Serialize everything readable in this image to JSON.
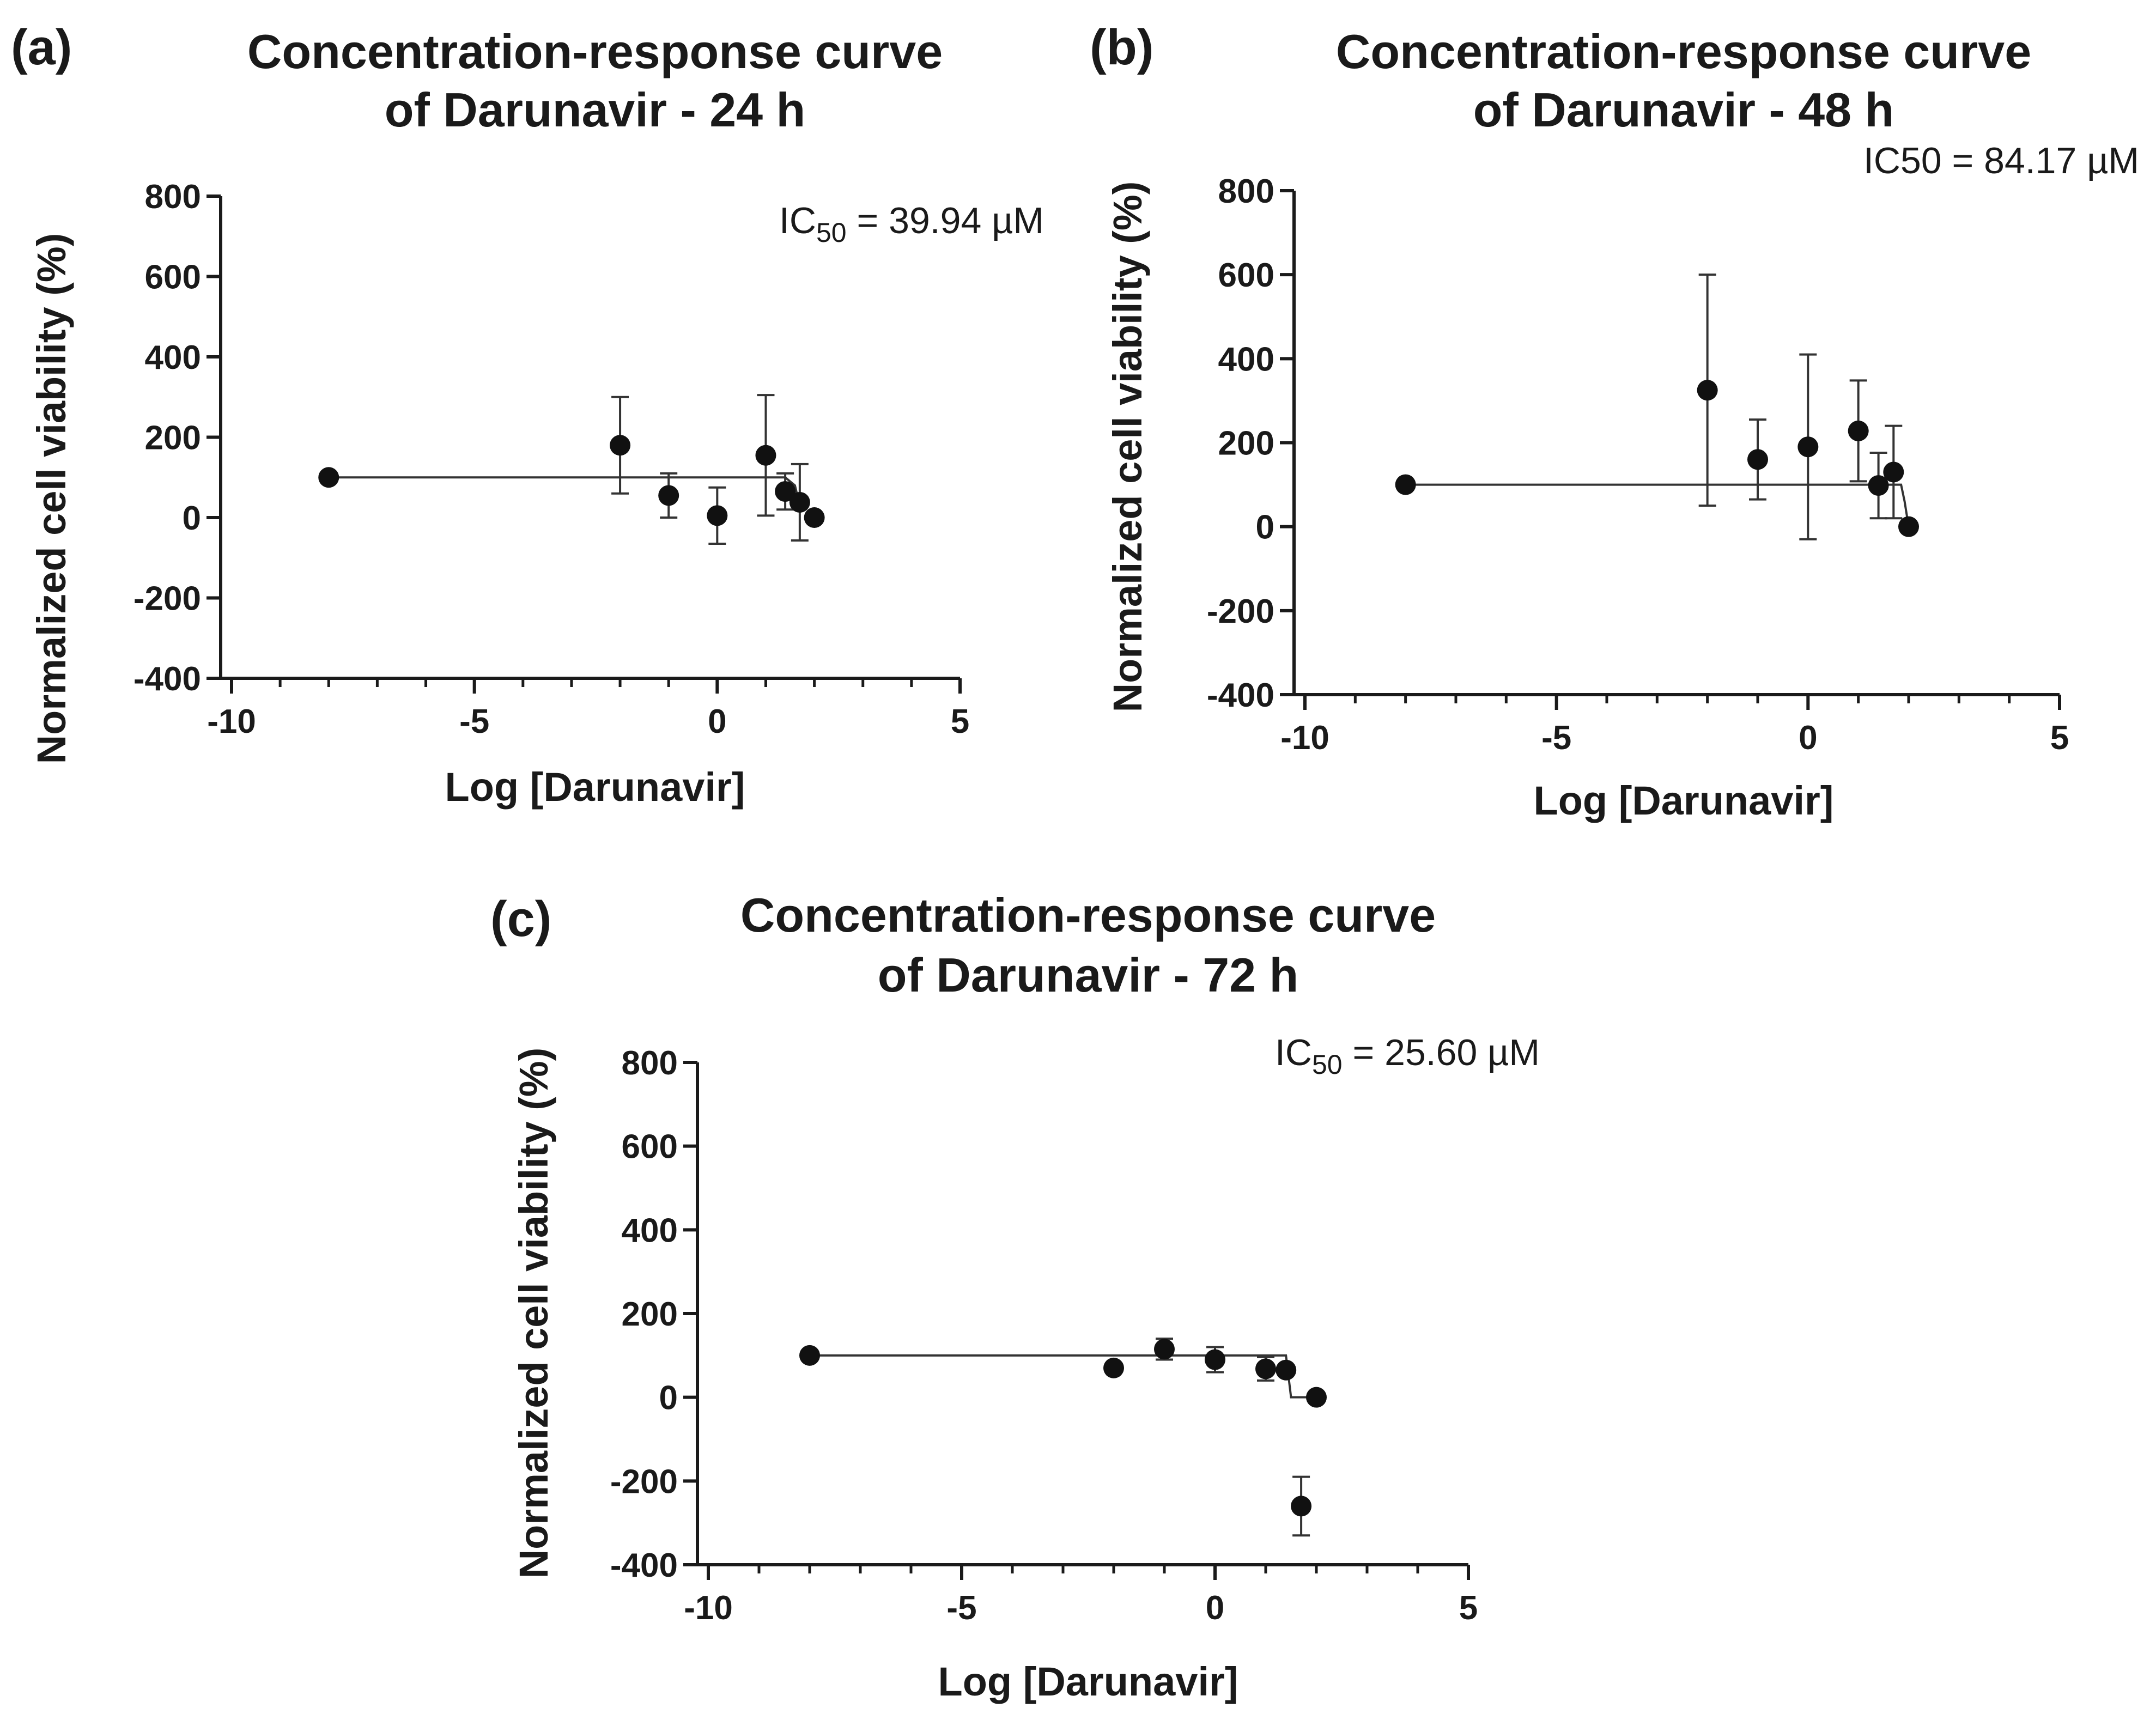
{
  "figure": {
    "panels": [
      {
        "label": "(a)",
        "title_line1": "Concentration-response curve",
        "title_line2": "of Darunavir - 24 h"
      },
      {
        "label": "(b)",
        "title_line1": "Concentration-response curve",
        "title_line2": "of Darunavir - 48 h"
      },
      {
        "label": "(c)",
        "title_line1": "Concentration-response curve",
        "title_line2": "of Darunavir - 72 h"
      }
    ]
  },
  "chart_data": [
    {
      "type": "scatter",
      "panel": "(a)",
      "title": "Concentration-response curve of Darunavir - 24 h",
      "xlabel": "Log [Darunavir]",
      "ylabel": "Normalized cell viability (%)",
      "xlim": [
        -10,
        5
      ],
      "ylim": [
        -400,
        800
      ],
      "xticks": [
        -10,
        -5,
        0,
        5
      ],
      "yticks": [
        -400,
        -200,
        0,
        200,
        400,
        600,
        800
      ],
      "annotation": {
        "prefix": "IC",
        "subscript": "50",
        "suffix": " = 39.94 µM"
      },
      "series": [
        {
          "name": "Darunavir 24 h",
          "x": [
            -8,
            -2,
            -1,
            0,
            1,
            1.4,
            1.7,
            2
          ],
          "y": [
            100,
            180,
            55,
            5,
            155,
            65,
            38,
            0
          ],
          "err": [
            0,
            120,
            55,
            70,
            150,
            45,
            95,
            0
          ]
        }
      ],
      "fit": {
        "x": [
          -8,
          1.4,
          1.6,
          1.7
        ],
        "y": [
          100,
          100,
          80,
          30
        ]
      }
    },
    {
      "type": "scatter",
      "panel": "(b)",
      "title": "Concentration-response curve of Darunavir - 48 h",
      "xlabel": "Log [Darunavir]",
      "ylabel": "Normalized cell viability (%)",
      "xlim": [
        -10,
        5
      ],
      "ylim": [
        -400,
        800
      ],
      "xticks": [
        -10,
        -5,
        0,
        5
      ],
      "yticks": [
        -400,
        -200,
        0,
        200,
        400,
        600,
        800
      ],
      "annotation": {
        "prefix": "IC50",
        "subscript": "",
        "suffix": " = 84.17 µM"
      },
      "series": [
        {
          "name": "Darunavir 48 h",
          "x": [
            -8,
            -2,
            -1,
            0,
            1,
            1.4,
            1.7,
            2
          ],
          "y": [
            100,
            325,
            160,
            190,
            228,
            98,
            130,
            0
          ],
          "err": [
            0,
            275,
            95,
            220,
            120,
            78,
            110,
            0
          ]
        }
      ],
      "fit": {
        "x": [
          -8,
          1.85,
          1.92,
          2.0
        ],
        "y": [
          100,
          100,
          60,
          0
        ]
      }
    },
    {
      "type": "scatter",
      "panel": "(c)",
      "title": "Concentration-response curve of Darunavir - 72 h",
      "xlabel": "Log [Darunavir]",
      "ylabel": "Normalized cell viability (%)",
      "xlim": [
        -10,
        5
      ],
      "ylim": [
        -400,
        800
      ],
      "xticks": [
        -10,
        -5,
        0,
        5
      ],
      "yticks": [
        -400,
        -200,
        0,
        200,
        400,
        600,
        800
      ],
      "annotation": {
        "prefix": "IC",
        "subscript": "50",
        "suffix": " = 25.60 µM"
      },
      "series": [
        {
          "name": "Darunavir 72 h",
          "x": [
            -8,
            -2,
            -1,
            0,
            1,
            1.4,
            1.7,
            2
          ],
          "y": [
            100,
            70,
            115,
            90,
            68,
            65,
            -260,
            0
          ],
          "err": [
            0,
            0,
            25,
            30,
            28,
            0,
            70,
            0
          ]
        }
      ],
      "fit": {
        "x": [
          -8,
          1.4,
          1.45,
          1.5,
          2.0
        ],
        "y": [
          100,
          100,
          50,
          0,
          0
        ]
      }
    }
  ]
}
